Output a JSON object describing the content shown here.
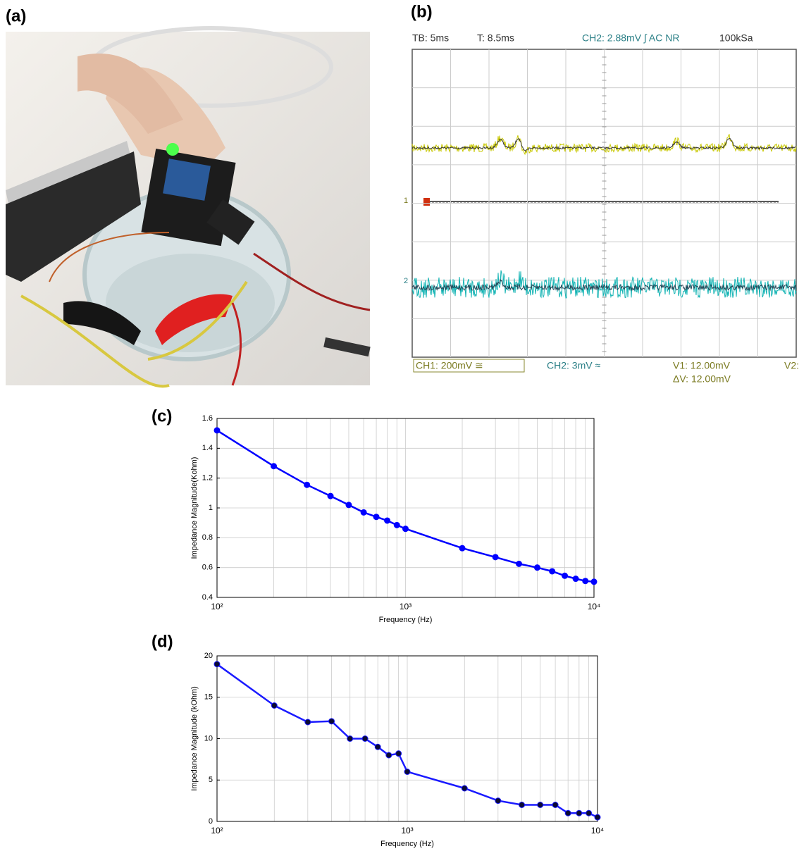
{
  "panels": {
    "a": "(a)",
    "b": "(b)",
    "c": "(c)",
    "d": "(d)"
  },
  "scope": {
    "timebase": "TB: 5ms",
    "trigger_time": "T: 8.5ms",
    "trigger": "CH2: 2.88mV ∫ AC NR",
    "sample_rate": "100kSa",
    "ch1": "CH1: 200mV ≅",
    "ch2": "CH2: 3mV ≈",
    "v1": "V1: 12.00mV",
    "dv": "ΔV: 12.00mV",
    "v2": "V2:",
    "marker1": "1",
    "marker2": "2"
  },
  "chart_data": [
    {
      "type": "line",
      "xlabel": "Frequency (Hz)",
      "ylabel": "Impedance Magnitude(Kohm)",
      "xscale": "log",
      "grid": true,
      "x": [
        100,
        200,
        300,
        400,
        500,
        600,
        700,
        800,
        900,
        1000,
        2000,
        3000,
        4000,
        5000,
        6000,
        7000,
        8000,
        9000,
        10000
      ],
      "series": [
        {
          "color": "#0000ff",
          "marker_color": "#0000ff",
          "values": [
            1.52,
            1.28,
            1.155,
            1.08,
            1.02,
            0.97,
            0.94,
            0.915,
            0.885,
            0.86,
            0.73,
            0.67,
            0.625,
            0.6,
            0.575,
            0.545,
            0.525,
            0.51,
            0.505
          ]
        }
      ],
      "xlim": [
        100,
        10000
      ],
      "xticks": [
        {
          "value": 100,
          "label": "10²"
        },
        {
          "value": 1000,
          "label": "10³"
        },
        {
          "value": 10000,
          "label": "10⁴"
        }
      ],
      "xgrid_minor": [
        200,
        300,
        400,
        500,
        600,
        700,
        800,
        900,
        2000,
        3000,
        4000,
        5000,
        6000,
        7000,
        8000,
        9000
      ],
      "ylim": [
        0.4,
        1.6
      ],
      "yticks": [
        0.4,
        0.6,
        0.8,
        1,
        1.2,
        1.4,
        1.6
      ]
    },
    {
      "type": "line",
      "xlabel": "Frequency (Hz)",
      "ylabel": "Impedance Magnitude (kOhm)",
      "xscale": "log",
      "grid": true,
      "x": [
        100,
        200,
        300,
        400,
        500,
        600,
        700,
        800,
        900,
        1000,
        2000,
        3000,
        4000,
        5000,
        6000,
        7000,
        8000,
        9000,
        10000
      ],
      "series": [
        {
          "color": "#1a1aff",
          "marker_color": "#0a0a33",
          "values": [
            19,
            14,
            12,
            12.1,
            10,
            10,
            9,
            8,
            8.2,
            6,
            4,
            2.5,
            2,
            2,
            2,
            1,
            1,
            1,
            0.5
          ]
        }
      ],
      "xlim": [
        100,
        10000
      ],
      "xticks": [
        {
          "value": 100,
          "label": "10²"
        },
        {
          "value": 1000,
          "label": "10³"
        },
        {
          "value": 10000,
          "label": "10⁴"
        }
      ],
      "xgrid_minor": [
        200,
        300,
        400,
        500,
        600,
        700,
        800,
        900,
        2000,
        3000,
        4000,
        5000,
        6000,
        7000,
        8000,
        9000
      ],
      "ylim": [
        0,
        20
      ],
      "yticks": [
        0,
        5,
        10,
        15,
        20
      ]
    }
  ]
}
